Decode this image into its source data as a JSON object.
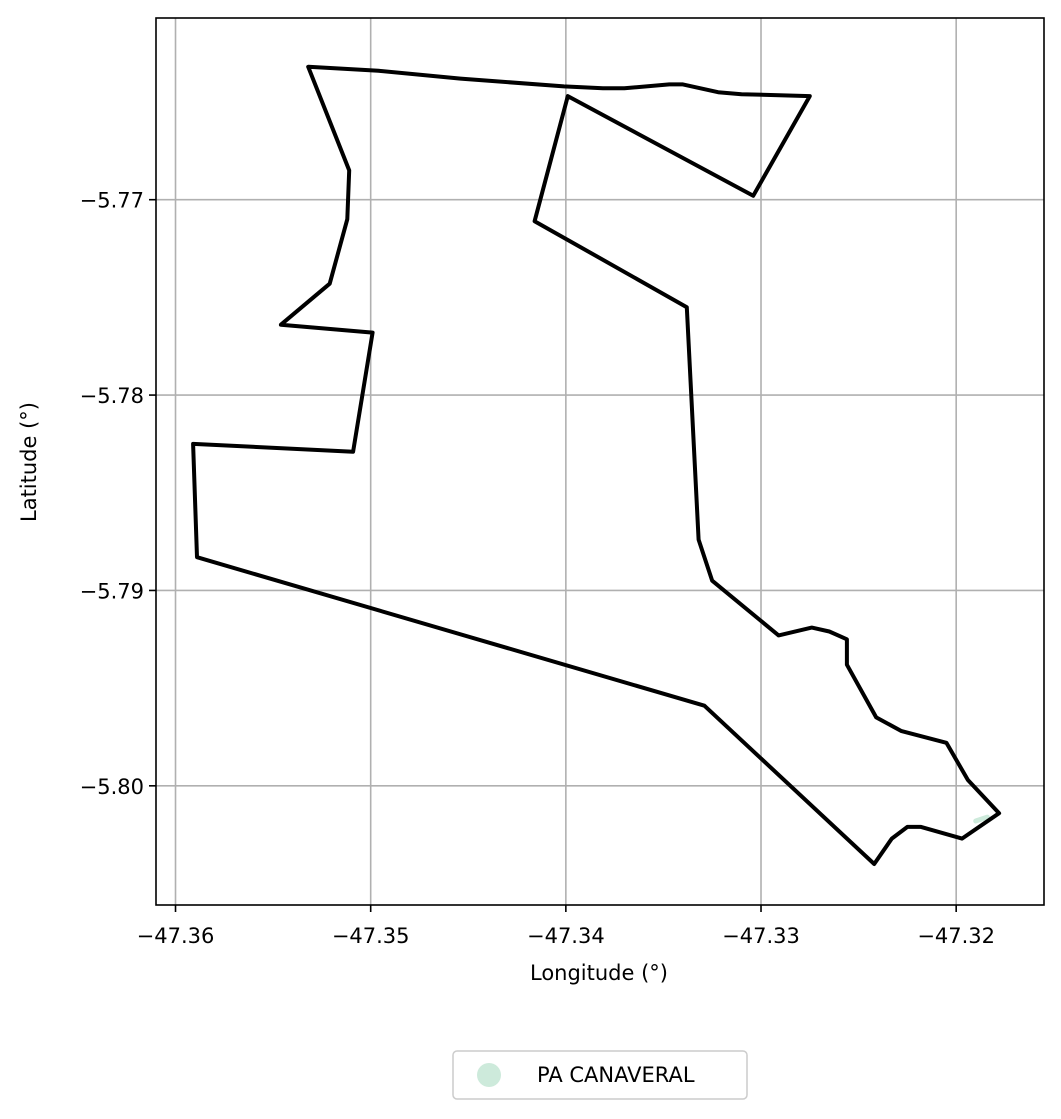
{
  "chart_data": {
    "type": "map",
    "xlabel": "Longitude (°)",
    "ylabel": "Latitude (°)",
    "xlim": [
      -47.361,
      -47.3155
    ],
    "ylim": [
      -5.8061,
      -5.7607
    ],
    "grid": true,
    "legend_placement": "bottom-center",
    "xticks": [
      {
        "value": -47.36,
        "label": "−47.36"
      },
      {
        "value": -47.35,
        "label": "−47.35"
      },
      {
        "value": -47.34,
        "label": "−47.34"
      },
      {
        "value": -47.33,
        "label": "−47.33"
      },
      {
        "value": -47.32,
        "label": "−47.32"
      }
    ],
    "yticks": [
      {
        "value": -5.77,
        "label": "−5.77"
      },
      {
        "value": -5.78,
        "label": "−5.78"
      },
      {
        "value": -5.79,
        "label": "−5.79"
      },
      {
        "value": -5.8,
        "label": "−5.80"
      }
    ],
    "boundary": {
      "color": "#000000",
      "points": [
        [
          -47.3532,
          -5.7632
        ],
        [
          -47.3496,
          -5.7634
        ],
        [
          -47.3454,
          -5.7638
        ],
        [
          -47.3401,
          -5.7642
        ],
        [
          -47.3381,
          -5.7643
        ],
        [
          -47.337,
          -5.7643
        ],
        [
          -47.3347,
          -5.7641
        ],
        [
          -47.334,
          -5.7641
        ],
        [
          -47.3322,
          -5.7645
        ],
        [
          -47.331,
          -5.7646
        ],
        [
          -47.3275,
          -5.7647
        ],
        [
          -47.3304,
          -5.7698
        ],
        [
          -47.3399,
          -5.7647
        ],
        [
          -47.3416,
          -5.7711
        ],
        [
          -47.3338,
          -5.7755
        ],
        [
          -47.3332,
          -5.7874
        ],
        [
          -47.3325,
          -5.7895
        ],
        [
          -47.3291,
          -5.7923
        ],
        [
          -47.3274,
          -5.7919
        ],
        [
          -47.3265,
          -5.7921
        ],
        [
          -47.3256,
          -5.7925
        ],
        [
          -47.3256,
          -5.7938
        ],
        [
          -47.3241,
          -5.7965
        ],
        [
          -47.3228,
          -5.7972
        ],
        [
          -47.3205,
          -5.7978
        ],
        [
          -47.3194,
          -5.7997
        ],
        [
          -47.3178,
          -5.8014
        ],
        [
          -47.3197,
          -5.8027
        ],
        [
          -47.3218,
          -5.8021
        ],
        [
          -47.3225,
          -5.8021
        ],
        [
          -47.3233,
          -5.8027
        ],
        [
          -47.3242,
          -5.804
        ],
        [
          -47.3329,
          -5.7959
        ],
        [
          -47.3589,
          -5.7883
        ],
        [
          -47.3591,
          -5.7825
        ],
        [
          -47.3509,
          -5.7829
        ],
        [
          -47.3499,
          -5.7768
        ],
        [
          -47.3546,
          -5.7764
        ],
        [
          -47.3521,
          -5.7743
        ],
        [
          -47.3512,
          -5.771
        ],
        [
          -47.3511,
          -5.7685
        ],
        [
          -47.3532,
          -5.7632
        ]
      ]
    },
    "series": [
      {
        "name": "PA CANAVERAL",
        "color": "#cdeadb",
        "points": [
          [
            -47.319,
            -5.8018
          ],
          [
            -47.3184,
            -5.8016
          ]
        ]
      }
    ]
  }
}
